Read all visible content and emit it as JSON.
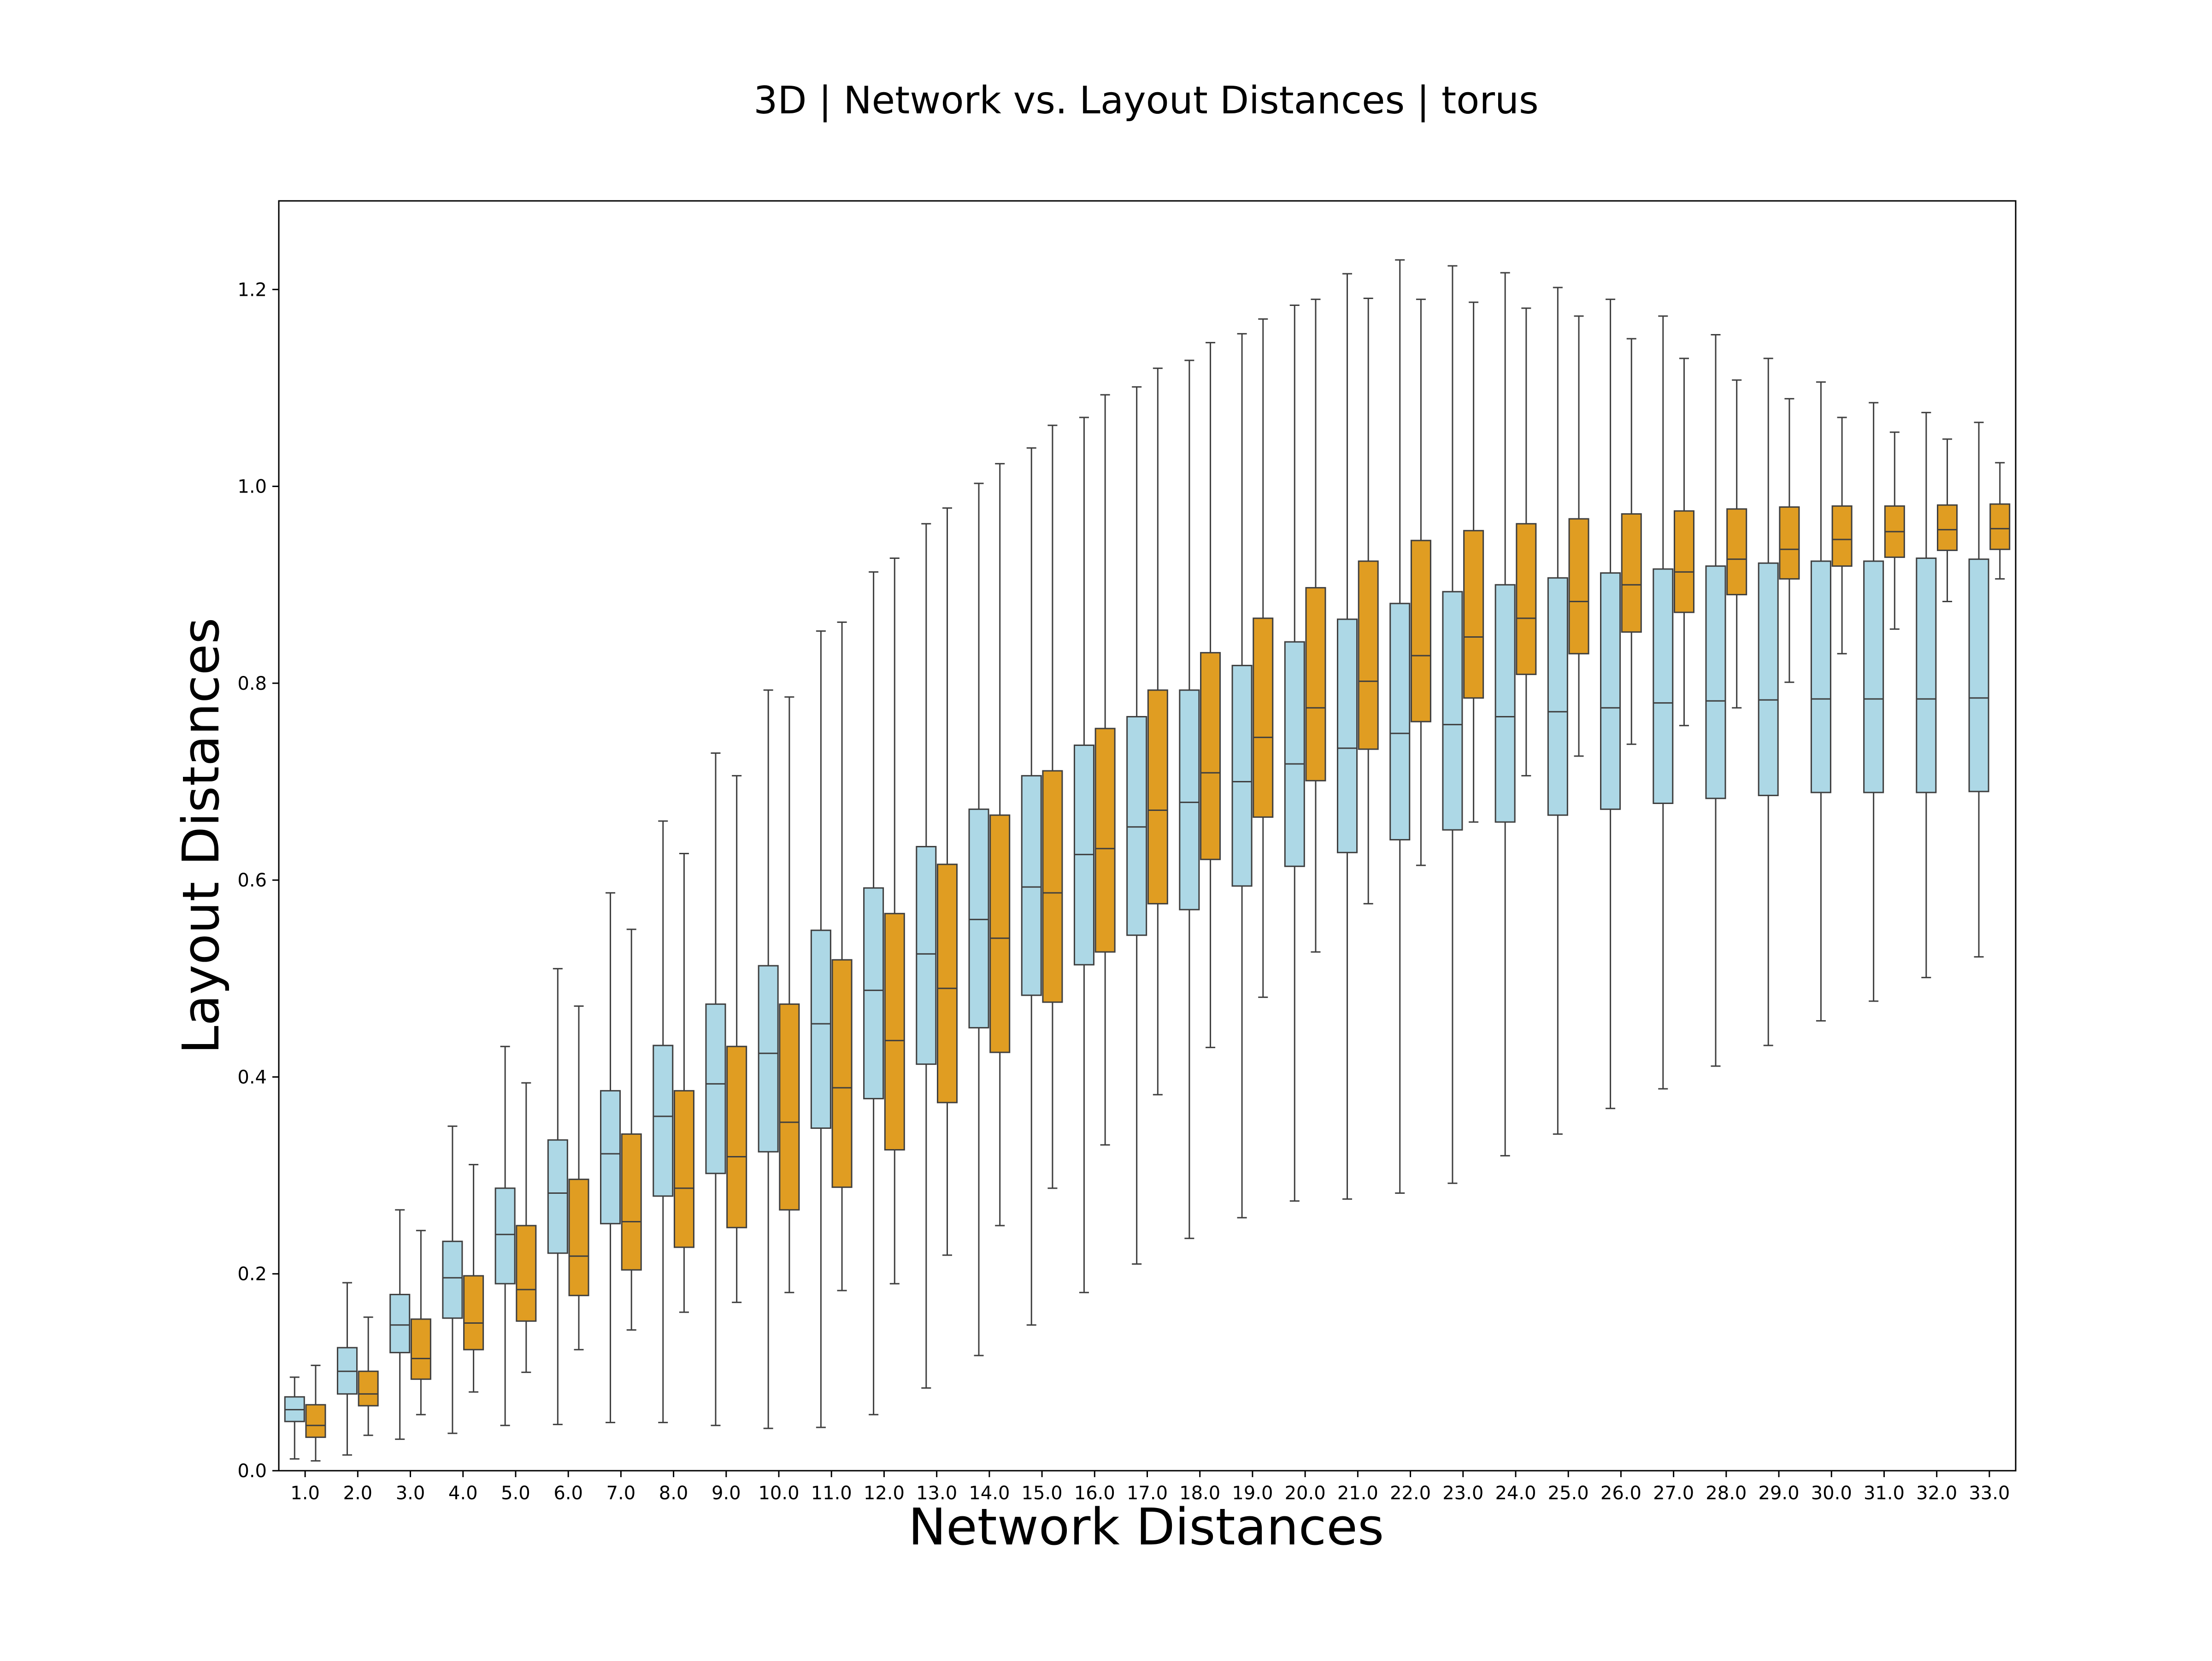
{
  "chart_data": {
    "type": "box",
    "title": "3D | Network vs. Layout Distances | torus",
    "xlabel": "Network Distances",
    "ylabel": "Layout Distances",
    "categories": [
      "1.0",
      "2.0",
      "3.0",
      "4.0",
      "5.0",
      "6.0",
      "7.0",
      "8.0",
      "9.0",
      "10.0",
      "11.0",
      "12.0",
      "13.0",
      "14.0",
      "15.0",
      "16.0",
      "17.0",
      "18.0",
      "19.0",
      "20.0",
      "21.0",
      "22.0",
      "23.0",
      "24.0",
      "25.0",
      "26.0",
      "27.0",
      "28.0",
      "29.0",
      "30.0",
      "31.0",
      "32.0",
      "33.0"
    ],
    "ylim": [
      0,
      1.29
    ],
    "yticks": [
      0.0,
      0.2,
      0.4,
      0.6,
      0.8,
      1.0,
      1.2
    ],
    "ytick_labels": [
      "0.0",
      "0.2",
      "0.4",
      "0.6",
      "0.8",
      "1.0",
      "1.2"
    ],
    "grid": false,
    "legend": "none",
    "series": [
      {
        "color": "#add8e6",
        "boxes": [
          {
            "whislo": 0.012,
            "q1": 0.05,
            "med": 0.062,
            "q3": 0.075,
            "whishi": 0.095
          },
          {
            "whislo": 0.016,
            "q1": 0.078,
            "med": 0.101,
            "q3": 0.125,
            "whishi": 0.191
          },
          {
            "whislo": 0.032,
            "q1": 0.12,
            "med": 0.148,
            "q3": 0.179,
            "whishi": 0.265
          },
          {
            "whislo": 0.038,
            "q1": 0.155,
            "med": 0.196,
            "q3": 0.233,
            "whishi": 0.35
          },
          {
            "whislo": 0.046,
            "q1": 0.19,
            "med": 0.24,
            "q3": 0.287,
            "whishi": 0.431
          },
          {
            "whislo": 0.047,
            "q1": 0.221,
            "med": 0.282,
            "q3": 0.336,
            "whishi": 0.51
          },
          {
            "whislo": 0.049,
            "q1": 0.251,
            "med": 0.322,
            "q3": 0.386,
            "whishi": 0.587
          },
          {
            "whislo": 0.049,
            "q1": 0.279,
            "med": 0.36,
            "q3": 0.432,
            "whishi": 0.66
          },
          {
            "whislo": 0.046,
            "q1": 0.302,
            "med": 0.393,
            "q3": 0.474,
            "whishi": 0.729
          },
          {
            "whislo": 0.043,
            "q1": 0.324,
            "med": 0.424,
            "q3": 0.513,
            "whishi": 0.793
          },
          {
            "whislo": 0.044,
            "q1": 0.348,
            "med": 0.454,
            "q3": 0.549,
            "whishi": 0.853
          },
          {
            "whislo": 0.057,
            "q1": 0.378,
            "med": 0.488,
            "q3": 0.592,
            "whishi": 0.913
          },
          {
            "whislo": 0.084,
            "q1": 0.413,
            "med": 0.525,
            "q3": 0.634,
            "whishi": 0.962
          },
          {
            "whislo": 0.117,
            "q1": 0.45,
            "med": 0.56,
            "q3": 0.672,
            "whishi": 1.003
          },
          {
            "whislo": 0.148,
            "q1": 0.483,
            "med": 0.593,
            "q3": 0.706,
            "whishi": 1.039
          },
          {
            "whislo": 0.181,
            "q1": 0.514,
            "med": 0.626,
            "q3": 0.737,
            "whishi": 1.07
          },
          {
            "whislo": 0.21,
            "q1": 0.544,
            "med": 0.654,
            "q3": 0.766,
            "whishi": 1.101
          },
          {
            "whislo": 0.236,
            "q1": 0.57,
            "med": 0.679,
            "q3": 0.793,
            "whishi": 1.128
          },
          {
            "whislo": 0.257,
            "q1": 0.594,
            "med": 0.7,
            "q3": 0.818,
            "whishi": 1.155
          },
          {
            "whislo": 0.274,
            "q1": 0.614,
            "med": 0.718,
            "q3": 0.842,
            "whishi": 1.184
          },
          {
            "whislo": 0.276,
            "q1": 0.628,
            "med": 0.734,
            "q3": 0.865,
            "whishi": 1.216
          },
          {
            "whislo": 0.282,
            "q1": 0.641,
            "med": 0.749,
            "q3": 0.881,
            "whishi": 1.23
          },
          {
            "whislo": 0.292,
            "q1": 0.651,
            "med": 0.758,
            "q3": 0.893,
            "whishi": 1.224
          },
          {
            "whislo": 0.32,
            "q1": 0.659,
            "med": 0.766,
            "q3": 0.9,
            "whishi": 1.217
          },
          {
            "whislo": 0.342,
            "q1": 0.666,
            "med": 0.771,
            "q3": 0.907,
            "whishi": 1.202
          },
          {
            "whislo": 0.368,
            "q1": 0.672,
            "med": 0.775,
            "q3": 0.912,
            "whishi": 1.19
          },
          {
            "whislo": 0.388,
            "q1": 0.678,
            "med": 0.78,
            "q3": 0.916,
            "whishi": 1.173
          },
          {
            "whislo": 0.411,
            "q1": 0.683,
            "med": 0.782,
            "q3": 0.919,
            "whishi": 1.154
          },
          {
            "whislo": 0.432,
            "q1": 0.686,
            "med": 0.783,
            "q3": 0.922,
            "whishi": 1.13
          },
          {
            "whislo": 0.457,
            "q1": 0.689,
            "med": 0.784,
            "q3": 0.924,
            "whishi": 1.106
          },
          {
            "whislo": 0.477,
            "q1": 0.689,
            "med": 0.784,
            "q3": 0.924,
            "whishi": 1.085
          },
          {
            "whislo": 0.501,
            "q1": 0.689,
            "med": 0.784,
            "q3": 0.927,
            "whishi": 1.075
          },
          {
            "whislo": 0.522,
            "q1": 0.69,
            "med": 0.785,
            "q3": 0.926,
            "whishi": 1.065
          }
        ]
      },
      {
        "color": "#e09d22",
        "boxes": [
          {
            "whislo": 0.01,
            "q1": 0.034,
            "med": 0.046,
            "q3": 0.067,
            "whishi": 0.107
          },
          {
            "whislo": 0.036,
            "q1": 0.066,
            "med": 0.078,
            "q3": 0.101,
            "whishi": 0.156
          },
          {
            "whislo": 0.057,
            "q1": 0.093,
            "med": 0.114,
            "q3": 0.154,
            "whishi": 0.244
          },
          {
            "whislo": 0.08,
            "q1": 0.123,
            "med": 0.15,
            "q3": 0.198,
            "whishi": 0.311
          },
          {
            "whislo": 0.1,
            "q1": 0.152,
            "med": 0.184,
            "q3": 0.249,
            "whishi": 0.394
          },
          {
            "whislo": 0.123,
            "q1": 0.178,
            "med": 0.218,
            "q3": 0.296,
            "whishi": 0.472
          },
          {
            "whislo": 0.143,
            "q1": 0.204,
            "med": 0.253,
            "q3": 0.342,
            "whishi": 0.55
          },
          {
            "whislo": 0.161,
            "q1": 0.227,
            "med": 0.287,
            "q3": 0.386,
            "whishi": 0.627
          },
          {
            "whislo": 0.171,
            "q1": 0.247,
            "med": 0.319,
            "q3": 0.431,
            "whishi": 0.706
          },
          {
            "whislo": 0.181,
            "q1": 0.265,
            "med": 0.354,
            "q3": 0.474,
            "whishi": 0.786
          },
          {
            "whislo": 0.183,
            "q1": 0.288,
            "med": 0.389,
            "q3": 0.519,
            "whishi": 0.862
          },
          {
            "whislo": 0.19,
            "q1": 0.326,
            "med": 0.437,
            "q3": 0.566,
            "whishi": 0.927
          },
          {
            "whislo": 0.219,
            "q1": 0.374,
            "med": 0.49,
            "q3": 0.616,
            "whishi": 0.978
          },
          {
            "whislo": 0.249,
            "q1": 0.425,
            "med": 0.541,
            "q3": 0.666,
            "whishi": 1.023
          },
          {
            "whislo": 0.287,
            "q1": 0.476,
            "med": 0.587,
            "q3": 0.711,
            "whishi": 1.062
          },
          {
            "whislo": 0.331,
            "q1": 0.527,
            "med": 0.632,
            "q3": 0.754,
            "whishi": 1.093
          },
          {
            "whislo": 0.382,
            "q1": 0.576,
            "med": 0.671,
            "q3": 0.793,
            "whishi": 1.12
          },
          {
            "whislo": 0.43,
            "q1": 0.621,
            "med": 0.709,
            "q3": 0.831,
            "whishi": 1.146
          },
          {
            "whislo": 0.481,
            "q1": 0.664,
            "med": 0.745,
            "q3": 0.866,
            "whishi": 1.17
          },
          {
            "whislo": 0.527,
            "q1": 0.701,
            "med": 0.775,
            "q3": 0.897,
            "whishi": 1.19
          },
          {
            "whislo": 0.576,
            "q1": 0.733,
            "med": 0.802,
            "q3": 0.924,
            "whishi": 1.191
          },
          {
            "whislo": 0.615,
            "q1": 0.761,
            "med": 0.828,
            "q3": 0.945,
            "whishi": 1.19
          },
          {
            "whislo": 0.659,
            "q1": 0.785,
            "med": 0.847,
            "q3": 0.955,
            "whishi": 1.187
          },
          {
            "whislo": 0.706,
            "q1": 0.809,
            "med": 0.866,
            "q3": 0.962,
            "whishi": 1.181
          },
          {
            "whislo": 0.726,
            "q1": 0.83,
            "med": 0.883,
            "q3": 0.967,
            "whishi": 1.173
          },
          {
            "whislo": 0.738,
            "q1": 0.852,
            "med": 0.9,
            "q3": 0.972,
            "whishi": 1.15
          },
          {
            "whislo": 0.757,
            "q1": 0.872,
            "med": 0.913,
            "q3": 0.975,
            "whishi": 1.13
          },
          {
            "whislo": 0.775,
            "q1": 0.89,
            "med": 0.926,
            "q3": 0.977,
            "whishi": 1.108
          },
          {
            "whislo": 0.801,
            "q1": 0.906,
            "med": 0.936,
            "q3": 0.979,
            "whishi": 1.089
          },
          {
            "whislo": 0.83,
            "q1": 0.919,
            "med": 0.946,
            "q3": 0.98,
            "whishi": 1.07
          },
          {
            "whislo": 0.855,
            "q1": 0.928,
            "med": 0.954,
            "q3": 0.98,
            "whishi": 1.055
          },
          {
            "whislo": 0.883,
            "q1": 0.935,
            "med": 0.956,
            "q3": 0.981,
            "whishi": 1.048
          },
          {
            "whislo": 0.906,
            "q1": 0.936,
            "med": 0.957,
            "q3": 0.982,
            "whishi": 1.024
          }
        ]
      }
    ]
  }
}
